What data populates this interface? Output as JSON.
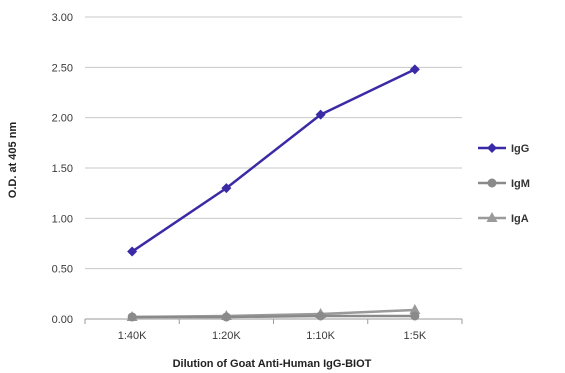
{
  "chart_data": {
    "type": "line",
    "title": "",
    "xlabel": "Dilution of Goat Anti-Human IgG-BIOT",
    "ylabel": "O.D. at 405 nm",
    "categories": [
      "1:40K",
      "1:20K",
      "1:10K",
      "1:5K"
    ],
    "ylim": [
      0,
      3
    ],
    "yticks": [
      "0.00",
      "0.50",
      "1.00",
      "1.50",
      "2.00",
      "2.50",
      "3.00"
    ],
    "grid": true,
    "legend_position": "right",
    "series": [
      {
        "name": "IgG",
        "values": [
          0.67,
          1.3,
          2.03,
          2.48
        ],
        "color": "#3b2aa6",
        "marker": "diamond"
      },
      {
        "name": "IgM",
        "values": [
          0.02,
          0.02,
          0.03,
          0.03
        ],
        "color": "#8a8a8a",
        "marker": "circle"
      },
      {
        "name": "IgA",
        "values": [
          0.02,
          0.03,
          0.05,
          0.09
        ],
        "color": "#9a9a9a",
        "marker": "triangle"
      }
    ]
  }
}
